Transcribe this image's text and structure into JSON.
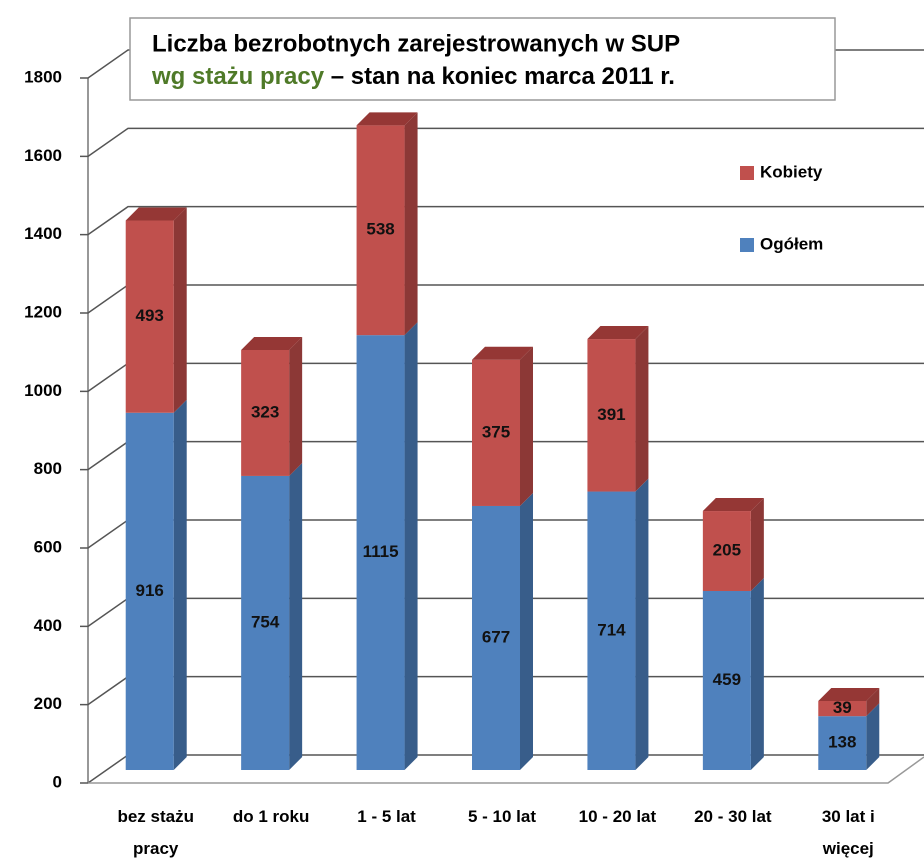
{
  "chart_data": {
    "type": "bar3d_stacked",
    "title": "Liczba bezrobotnych zarejestrowanych w SUP",
    "subtitle": {
      "highlight": "wg stażu pracy",
      "rest": "– stan na koniec marca 2011 r."
    },
    "categories": [
      "bez stażu\npracy",
      "do 1 roku",
      "1 - 5 lat",
      "5 - 10 lat",
      "10 - 20 lat",
      "20 - 30 lat",
      "30 lat i\nwięcej"
    ],
    "series": [
      {
        "name": "Ogółem",
        "color": "#4f81bd",
        "side": "#385d8a",
        "values": [
          916,
          754,
          1115,
          677,
          714,
          459,
          138
        ]
      },
      {
        "name": "Kobiety",
        "color": "#c0504d",
        "side": "#8c3836",
        "values": [
          493,
          323,
          538,
          375,
          391,
          205,
          39
        ]
      }
    ],
    "ylim": [
      0,
      1800
    ],
    "yticks": [
      0,
      200,
      400,
      600,
      800,
      1000,
      1200,
      1400,
      1600,
      1800
    ],
    "grid": true,
    "legend": "right"
  }
}
